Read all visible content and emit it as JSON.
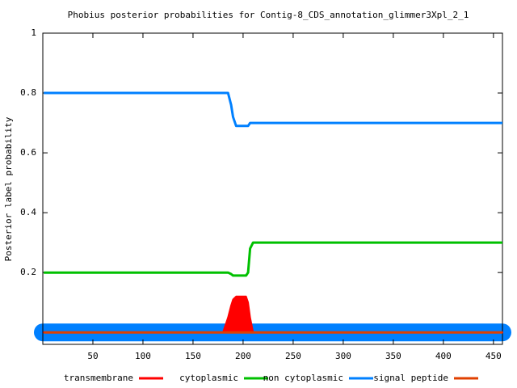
{
  "chart_data": {
    "type": "line",
    "title": "Phobius posterior probabilities for Contig-8_CDS_annotation_glimmer3Xpl_2_1",
    "y_label": "Posterior label probability",
    "x": [
      1,
      50,
      100,
      150,
      180,
      185,
      188,
      190,
      193,
      200,
      203,
      205,
      207,
      210,
      250,
      300,
      350,
      400,
      459
    ],
    "series": [
      {
        "name": "transmembrane",
        "color": "#ff0000",
        "fill": true,
        "values": [
          0,
          0,
          0,
          0,
          0,
          0.05,
          0.09,
          0.11,
          0.12,
          0.12,
          0.12,
          0.1,
          0.05,
          0,
          0,
          0,
          0,
          0,
          0
        ]
      },
      {
        "name": "cytoplasmic",
        "color": "#00c000",
        "values": [
          0.2,
          0.2,
          0.2,
          0.2,
          0.2,
          0.2,
          0.195,
          0.19,
          0.19,
          0.19,
          0.19,
          0.2,
          0.28,
          0.3,
          0.3,
          0.3,
          0.3,
          0.3,
          0.3
        ]
      },
      {
        "name": "non cytoplasmic",
        "color": "#0080ff",
        "values": [
          0.8,
          0.8,
          0.8,
          0.8,
          0.8,
          0.8,
          0.76,
          0.72,
          0.69,
          0.69,
          0.69,
          0.69,
          0.7,
          0.7,
          0.7,
          0.7,
          0.7,
          0.7,
          0.7
        ]
      },
      {
        "name": "signal peptide",
        "color": "#e04000",
        "values": [
          0,
          0,
          0,
          0,
          0,
          0,
          0,
          0,
          0,
          0,
          0,
          0,
          0,
          0,
          0,
          0,
          0,
          0,
          0
        ]
      }
    ],
    "regions": [
      {
        "start": 0,
        "end": 459,
        "color": "#0080ff"
      }
    ],
    "xlim": [
      0,
      459
    ],
    "ylim": [
      -0.04,
      1
    ],
    "xticks": [
      50,
      100,
      150,
      200,
      250,
      300,
      350,
      400,
      450
    ],
    "yticks": [
      0.2,
      0.4,
      0.6,
      0.8,
      1
    ]
  }
}
